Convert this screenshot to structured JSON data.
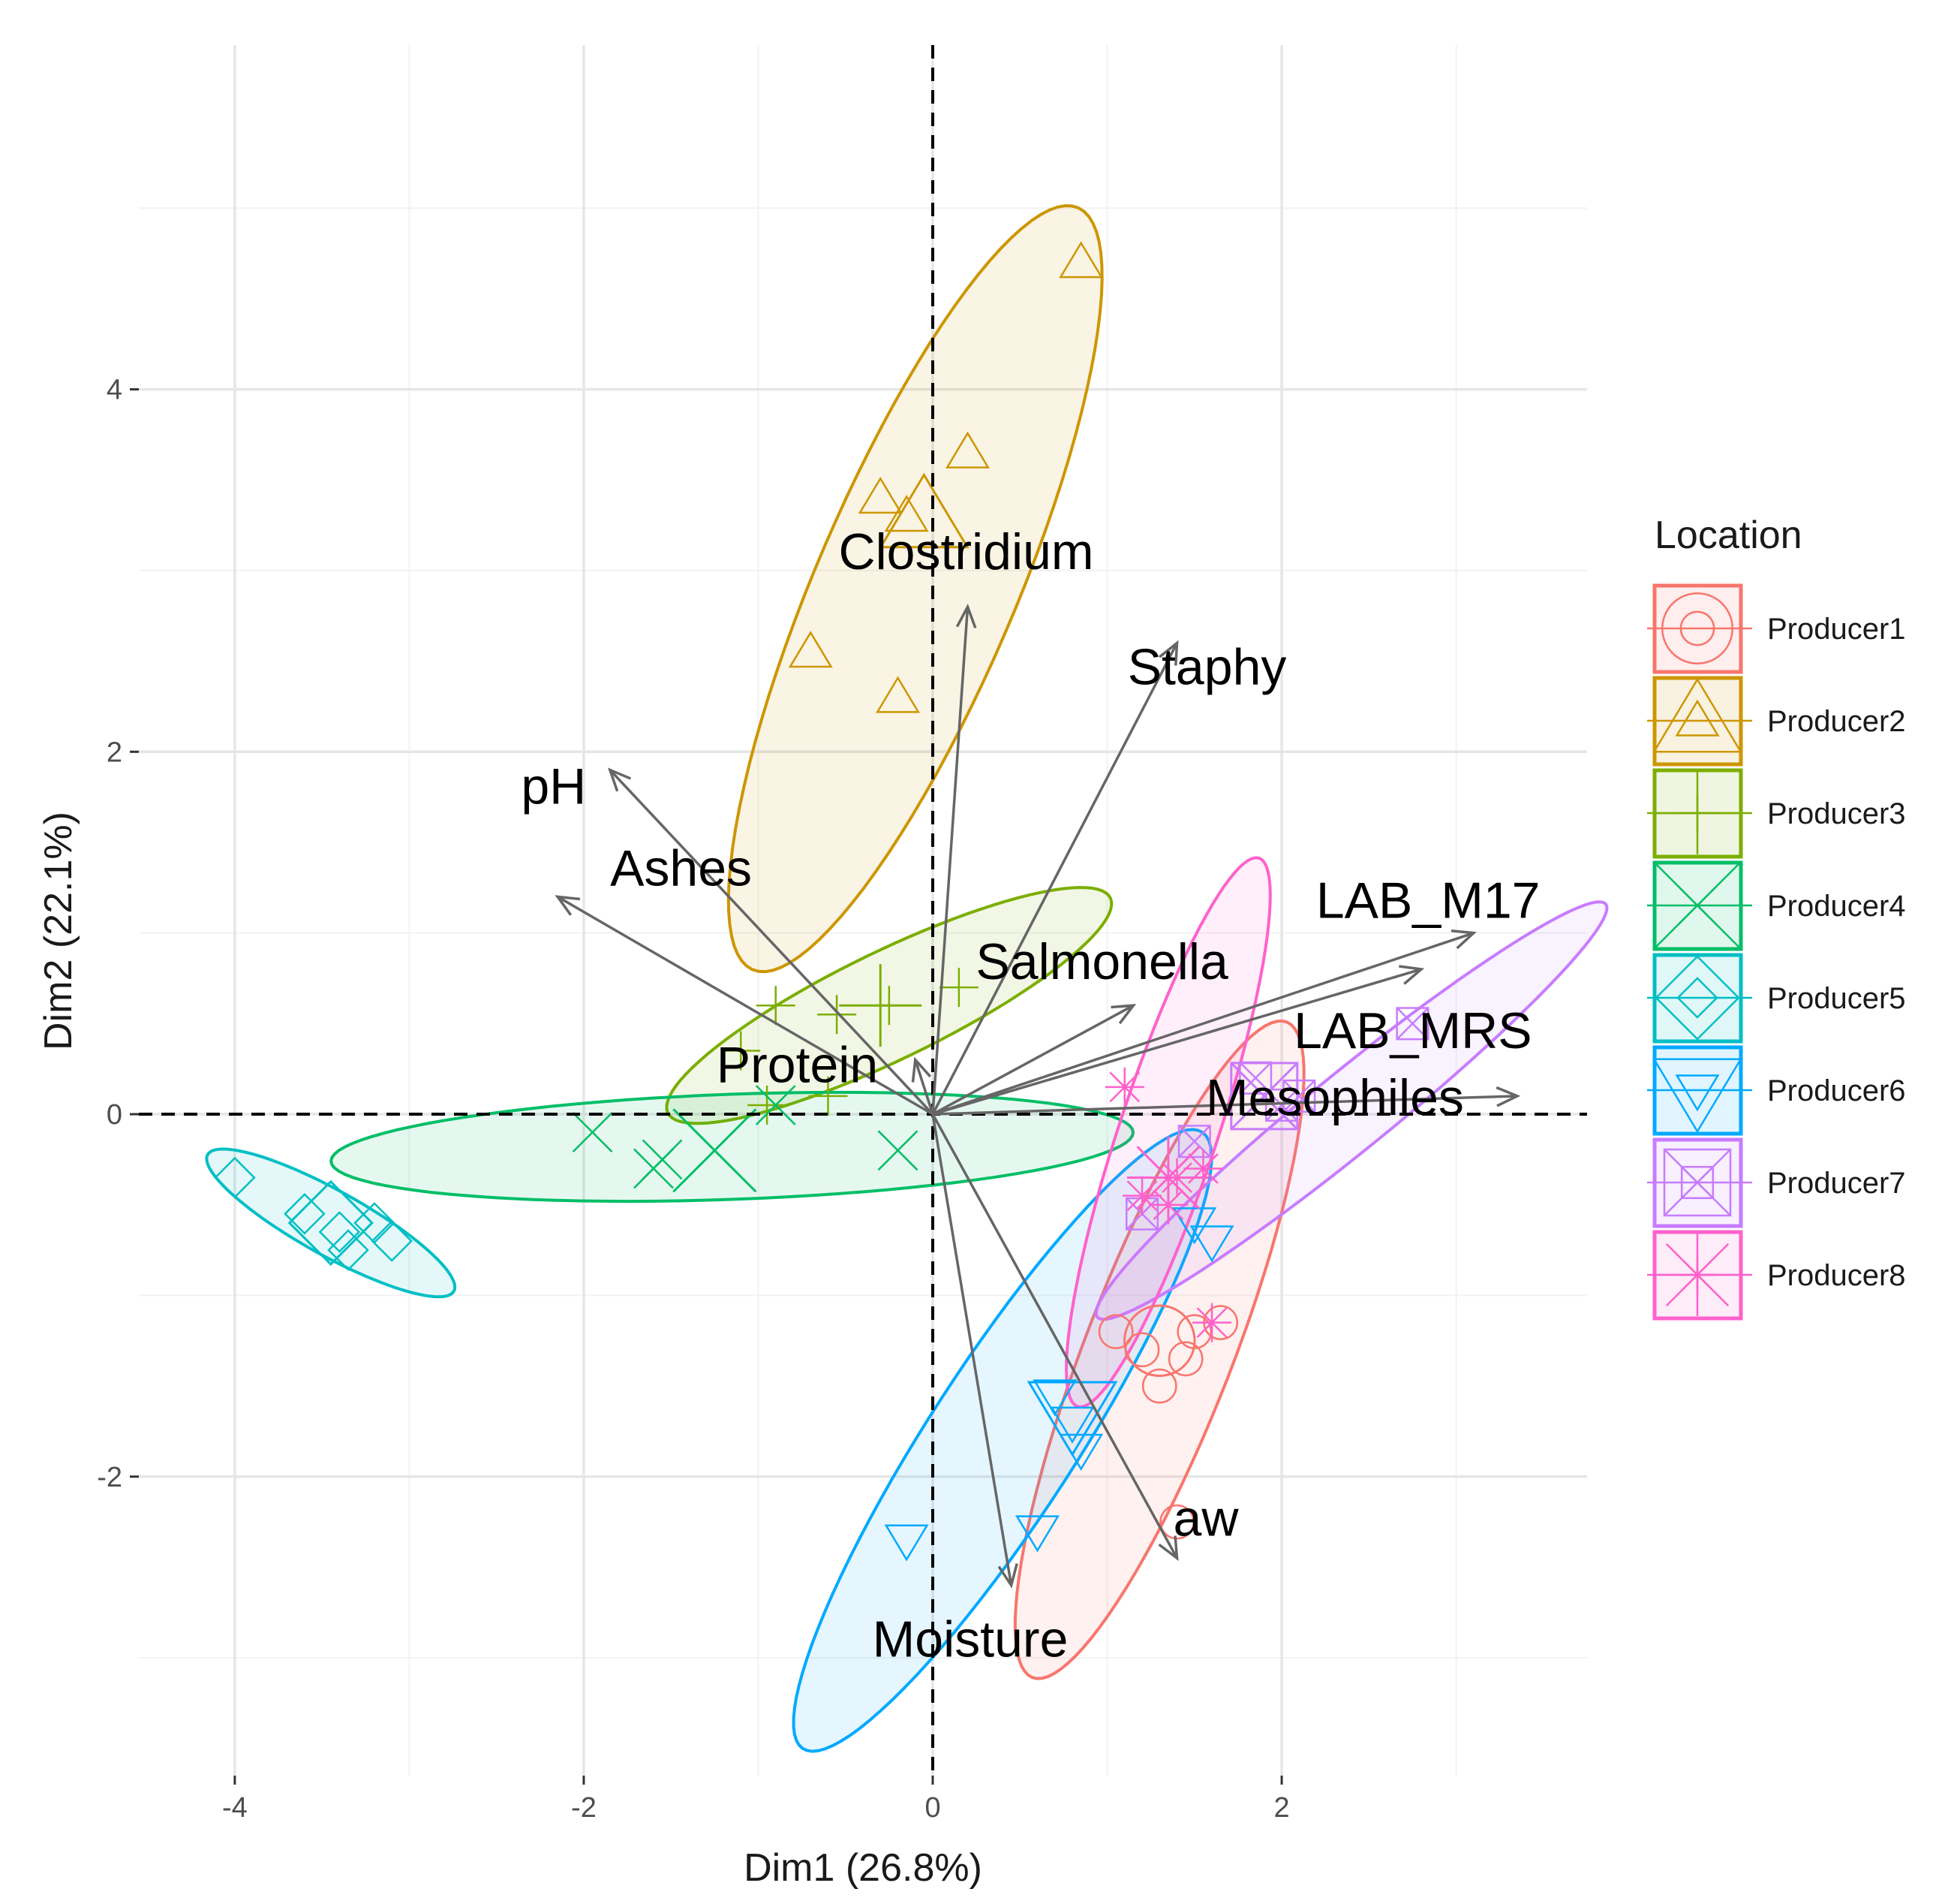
{
  "chart_data": {
    "type": "scatter",
    "subtype": "PCA biplot",
    "xlabel": "Dim1 (26.8%)",
    "ylabel": "Dim2 (22.1%)",
    "xlim": [
      -4.55,
      3.75
    ],
    "ylim": [
      -3.65,
      5.9
    ],
    "x_ticks": [
      -4,
      -2,
      0,
      2
    ],
    "y_ticks": [
      -2,
      0,
      2,
      4
    ],
    "grid": true,
    "reference_lines": {
      "x": 0,
      "y": 0,
      "style": "dashed"
    },
    "legend": {
      "title": "Location",
      "position": "right",
      "items": [
        {
          "label": "Producer1",
          "color": "#F8766D",
          "shape": "circle"
        },
        {
          "label": "Producer2",
          "color": "#CD9600",
          "shape": "triangle"
        },
        {
          "label": "Producer3",
          "color": "#7CAE00",
          "shape": "plus"
        },
        {
          "label": "Producer4",
          "color": "#00BE67",
          "shape": "cross"
        },
        {
          "label": "Producer5",
          "color": "#00BFC4",
          "shape": "diamond"
        },
        {
          "label": "Producer6",
          "color": "#00A9FF",
          "shape": "triangle-down"
        },
        {
          "label": "Producer7",
          "color": "#C77CFF",
          "shape": "square-cross"
        },
        {
          "label": "Producer8",
          "color": "#FF61CC",
          "shape": "asterisk"
        }
      ]
    },
    "groups": [
      {
        "name": "Producer1",
        "color": "#F8766D",
        "shape": "circle",
        "points": [
          [
            1.2,
            -1.3
          ],
          [
            1.45,
            -1.35
          ],
          [
            1.5,
            -1.2
          ],
          [
            1.3,
            -1.5
          ],
          [
            1.05,
            -1.2
          ],
          [
            1.65,
            -1.15
          ],
          [
            1.4,
            -2.25
          ]
        ],
        "centroid": [
          1.3,
          -1.25
        ],
        "ellipse": {
          "cx": 1.3,
          "cy": -1.3,
          "rx": 1.95,
          "ry": 0.42,
          "angle": 68
        }
      },
      {
        "name": "Producer2",
        "color": "#CD9600",
        "shape": "triangle",
        "points": [
          [
            0.85,
            4.7
          ],
          [
            0.2,
            3.65
          ],
          [
            -0.3,
            3.4
          ],
          [
            -0.15,
            3.3
          ],
          [
            -0.7,
            2.55
          ],
          [
            -0.2,
            2.3
          ]
        ],
        "centroid": [
          -0.05,
          3.3
        ],
        "ellipse": {
          "cx": -0.1,
          "cy": 2.9,
          "rx": 2.3,
          "ry": 0.57,
          "angle": 66
        }
      },
      {
        "name": "Producer3",
        "color": "#7CAE00",
        "shape": "plus",
        "points": [
          [
            -0.9,
            0.6
          ],
          [
            -0.55,
            0.55
          ],
          [
            -0.25,
            0.6
          ],
          [
            0.15,
            0.7
          ],
          [
            -0.6,
            0.1
          ],
          [
            -0.95,
            0.05
          ],
          [
            -1.1,
            0.35
          ]
        ],
        "centroid": [
          -0.3,
          0.6
        ],
        "ellipse": {
          "cx": -0.25,
          "cy": 0.6,
          "rx": 1.4,
          "ry": 0.3,
          "angle": 25
        }
      },
      {
        "name": "Producer4",
        "color": "#00BE67",
        "shape": "cross",
        "points": [
          [
            -1.95,
            -0.1
          ],
          [
            -1.6,
            -0.3
          ],
          [
            -1.55,
            -0.25
          ],
          [
            -1.25,
            -0.2
          ],
          [
            -0.9,
            0.05
          ],
          [
            -0.2,
            -0.2
          ]
        ],
        "centroid": [
          -1.25,
          -0.2
        ],
        "ellipse": {
          "cx": -1.15,
          "cy": -0.18,
          "rx": 2.3,
          "ry": 0.29,
          "angle": 2
        }
      },
      {
        "name": "Producer5",
        "color": "#00BFC4",
        "shape": "diamond",
        "points": [
          [
            -4.0,
            -0.35
          ],
          [
            -3.6,
            -0.55
          ],
          [
            -3.4,
            -0.65
          ],
          [
            -3.35,
            -0.75
          ],
          [
            -3.2,
            -0.6
          ],
          [
            -3.1,
            -0.7
          ]
        ],
        "centroid": [
          -3.45,
          -0.6
        ],
        "ellipse": {
          "cx": -3.45,
          "cy": -0.6,
          "rx": 0.8,
          "ry": 0.18,
          "angle": -28
        }
      },
      {
        "name": "Producer6",
        "color": "#00A9FF",
        "shape": "triangle-down",
        "points": [
          [
            1.6,
            -0.7
          ],
          [
            1.5,
            -0.6
          ],
          [
            0.7,
            -1.55
          ],
          [
            0.8,
            -1.7
          ],
          [
            0.85,
            -1.85
          ],
          [
            0.6,
            -2.3
          ],
          [
            -0.15,
            -2.35
          ]
        ],
        "centroid": [
          0.8,
          -1.65
        ],
        "ellipse": {
          "cx": 0.4,
          "cy": -1.8,
          "rx": 2.05,
          "ry": 0.42,
          "angle": 56
        }
      },
      {
        "name": "Producer7",
        "color": "#C77CFF",
        "shape": "square-cross",
        "points": [
          [
            2.75,
            0.5
          ],
          [
            2.0,
            0.05
          ],
          [
            1.85,
            0.2
          ],
          [
            2.1,
            0.1
          ],
          [
            1.5,
            -0.15
          ],
          [
            1.2,
            -0.55
          ]
        ],
        "centroid": [
          1.9,
          0.1
        ],
        "ellipse": {
          "cx": 2.4,
          "cy": 0.02,
          "rx": 1.85,
          "ry": 0.22,
          "angle": 38
        }
      },
      {
        "name": "Producer8",
        "color": "#FF61CC",
        "shape": "asterisk",
        "points": [
          [
            1.1,
            0.15
          ],
          [
            1.4,
            -0.35
          ],
          [
            1.35,
            -0.5
          ],
          [
            1.55,
            -0.3
          ],
          [
            1.6,
            -1.15
          ],
          [
            1.2,
            -0.45
          ]
        ],
        "centroid": [
          1.35,
          -0.35
        ],
        "ellipse": {
          "cx": 1.35,
          "cy": -0.1,
          "rx": 1.6,
          "ry": 0.28,
          "angle": 71
        }
      }
    ],
    "variables": [
      {
        "name": "Clostridium",
        "x": 0.2,
        "y": 2.8
      },
      {
        "name": "Staphy",
        "x": 1.4,
        "y": 2.6
      },
      {
        "name": "pH",
        "x": -1.85,
        "y": 1.9
      },
      {
        "name": "Ashes",
        "x": -2.15,
        "y": 1.2
      },
      {
        "name": "Salmonella",
        "x": 1.15,
        "y": 0.6
      },
      {
        "name": "LAB_M17",
        "x": 3.1,
        "y": 1.0
      },
      {
        "name": "LAB_MRS",
        "x": 2.8,
        "y": 0.8
      },
      {
        "name": "Protein",
        "x": -0.1,
        "y": 0.3
      },
      {
        "name": "Mesophiles",
        "x": 3.35,
        "y": 0.1
      },
      {
        "name": "aw",
        "x": 1.4,
        "y": -2.45
      },
      {
        "name": "Moisture",
        "x": 0.45,
        "y": -2.6
      }
    ]
  }
}
